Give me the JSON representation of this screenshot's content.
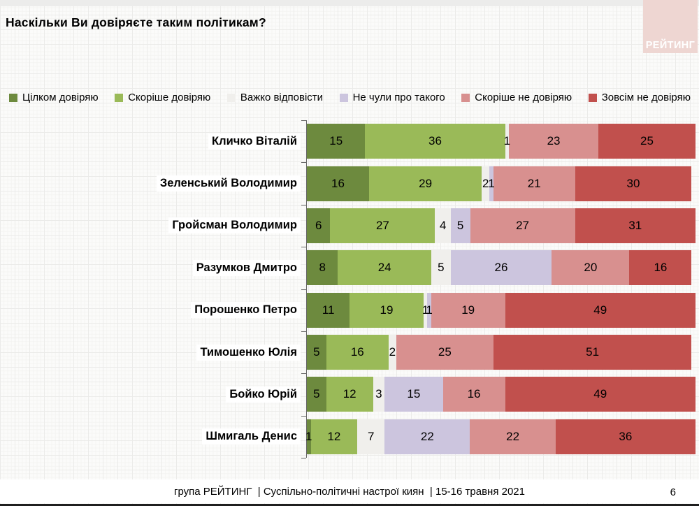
{
  "slide": {
    "title": "Наскільки Ви довіряєте таким політикам?",
    "logo_text": "РЕЙТИНГ",
    "footer": "група РЕЙТИНГ  | Суспільно-політичні настрої киян  | 15-16 травня 2021",
    "page_number": "6"
  },
  "chart_data": {
    "type": "bar",
    "orientation": "horizontal",
    "stacked": true,
    "unit": "percent",
    "title": "Наскільки Ви довіряєте таким політикам?",
    "xlabel": "",
    "ylabel": "",
    "xlim": [
      0,
      100
    ],
    "grid": false,
    "legend_position": "top",
    "value_labels": "inside",
    "categories": [
      "Кличко Віталій",
      "Зеленський Володимир",
      "Гройсман Володимир",
      "Разумков Дмитро",
      "Порошенко Петро",
      "Тимошенко Юлія",
      "Бойко Юрій",
      "Шмигаль Денис"
    ],
    "series": [
      {
        "name": "Цілком довіряю",
        "color": "#6d8a3e",
        "values": [
          15,
          16,
          6,
          8,
          11,
          5,
          5,
          1
        ]
      },
      {
        "name": "Скоріше довіряю",
        "color": "#9aba58",
        "values": [
          36,
          29,
          27,
          24,
          19,
          16,
          12,
          12
        ]
      },
      {
        "name": "Важко відповісти",
        "color": "#f0efec",
        "values": [
          1,
          2,
          4,
          5,
          1,
          2,
          3,
          7
        ]
      },
      {
        "name": "Не чули про такого",
        "color": "#ccc5de",
        "values": [
          0,
          1,
          5,
          26,
          1,
          0,
          15,
          22
        ]
      },
      {
        "name": "Скоріше не довіряю",
        "color": "#d8908f",
        "values": [
          23,
          21,
          27,
          20,
          19,
          25,
          16,
          22
        ]
      },
      {
        "name": "Зовсім не довіряю",
        "color": "#c1504d",
        "values": [
          25,
          30,
          31,
          16,
          49,
          51,
          49,
          36
        ]
      }
    ]
  }
}
